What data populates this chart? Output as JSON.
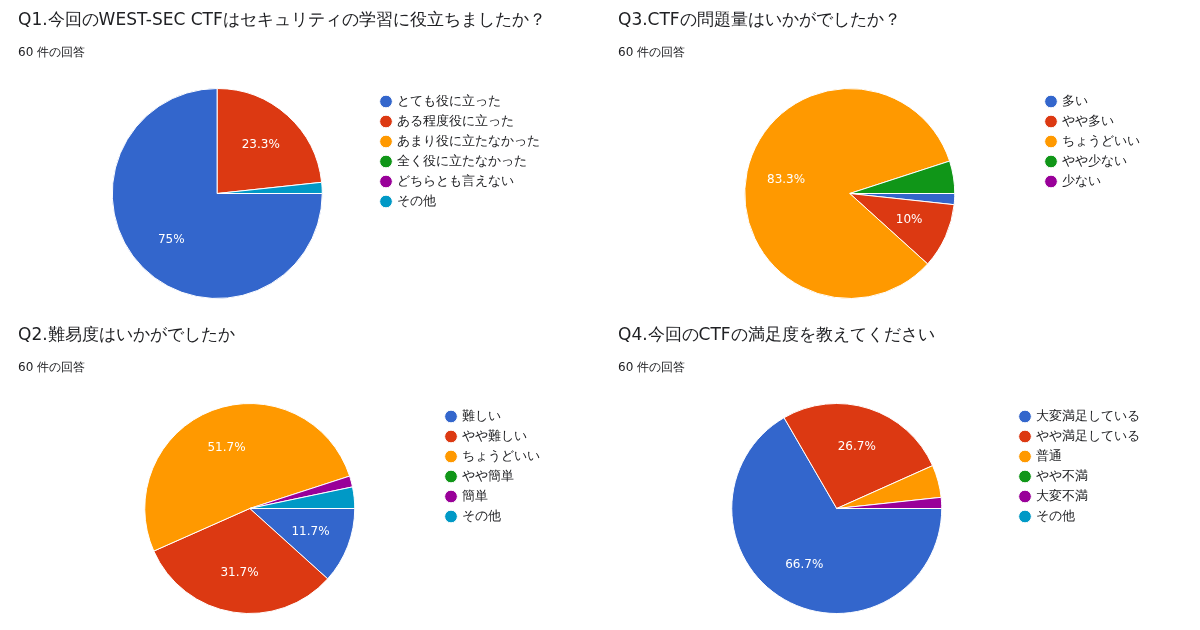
{
  "chart_data": [
    {
      "type": "pie",
      "title": "Q1.今回のWEST-SEC CTFはセキュリティの学習に役立ちましたか？",
      "subtitle": "60 件の回答",
      "categories": [
        "とても役に立った",
        "ある程度役に立った",
        "あまり役に立たなかった",
        "全く役に立たなかった",
        "どちらとも言えない",
        "その他"
      ],
      "values": [
        75,
        23.3,
        0,
        0,
        0,
        1.7
      ],
      "colors": [
        "#3366cc",
        "#dc3912",
        "#ff9900",
        "#109618",
        "#990099",
        "#0099c6"
      ],
      "value_labels": [
        "75%",
        "23.3%",
        null,
        null,
        null,
        null
      ],
      "legend": "right"
    },
    {
      "type": "pie",
      "title": "Q3.CTFの問題量はいかがでしたか？",
      "subtitle": "60 件の回答",
      "categories": [
        "多い",
        "やや多い",
        "ちょうどいい",
        "やや少ない",
        "少ない"
      ],
      "values": [
        1.7,
        10,
        83.3,
        5,
        0
      ],
      "colors": [
        "#3366cc",
        "#dc3912",
        "#ff9900",
        "#109618",
        "#990099"
      ],
      "value_labels": [
        null,
        "10%",
        "83.3%",
        null,
        null
      ],
      "legend": "right"
    },
    {
      "type": "pie",
      "title": "Q2.難易度はいかがでしたか",
      "subtitle": "60 件の回答",
      "categories": [
        "難しい",
        "やや難しい",
        "ちょうどいい",
        "やや簡単",
        "簡単",
        "その他"
      ],
      "values": [
        11.7,
        31.7,
        51.7,
        0,
        1.7,
        3.3
      ],
      "colors": [
        "#3366cc",
        "#dc3912",
        "#ff9900",
        "#109618",
        "#990099",
        "#0099c6"
      ],
      "value_labels": [
        "11.7%",
        "31.7%",
        "51.7%",
        null,
        null,
        null
      ],
      "legend": "right"
    },
    {
      "type": "pie",
      "title": "Q4.今回のCTFの満足度を教えてください",
      "subtitle": "60 件の回答",
      "categories": [
        "大変満足している",
        "やや満足している",
        "普通",
        "やや不満",
        "大変不満",
        "その他"
      ],
      "values": [
        66.7,
        26.7,
        5,
        0,
        1.7,
        0
      ],
      "colors": [
        "#3366cc",
        "#dc3912",
        "#ff9900",
        "#109618",
        "#990099",
        "#0099c6"
      ],
      "value_labels": [
        "66.7%",
        "26.7%",
        null,
        null,
        null,
        null
      ],
      "legend": "right"
    }
  ]
}
